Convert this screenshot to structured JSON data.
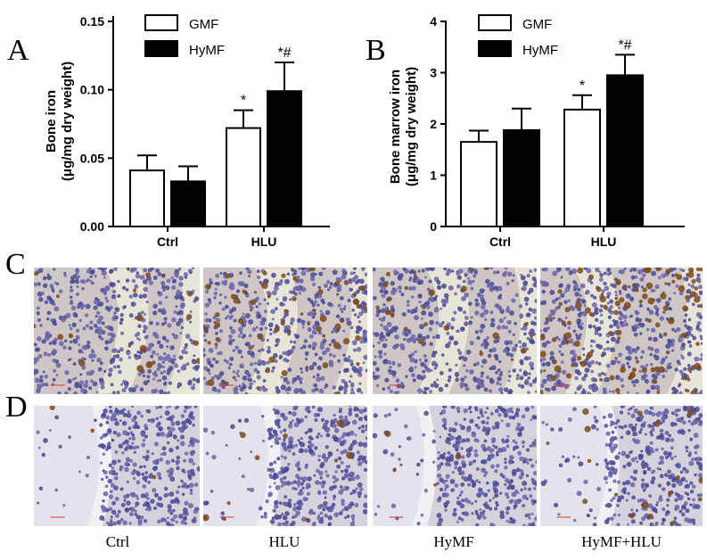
{
  "panels": {
    "a": "A",
    "b": "B",
    "c": "C",
    "d": "D"
  },
  "micrograph_labels": [
    "Ctrl",
    "HLU",
    "HyMF",
    "HyMF+HLU"
  ],
  "colors": {
    "gmf": "#ffffff",
    "hymf": "#000000",
    "stain_cells": "#4a4a94",
    "stain_iron": "#7a4a1a",
    "bone": "#e9e4d8"
  },
  "chart_data": [
    {
      "type": "bar",
      "panel": "A",
      "categories": [
        "Ctrl",
        "HLU"
      ],
      "ylabel_lines": [
        "Bone iron",
        "(μg/mg dry weight)"
      ],
      "ylim": [
        0,
        0.15
      ],
      "yticks": [
        "0.00",
        "0.05",
        "0.10",
        "0.15"
      ],
      "tick_values": [
        0,
        0.05,
        0.1,
        0.15
      ],
      "legend": "top-left",
      "series": [
        {
          "name": "GMF",
          "values": [
            0.041,
            0.072
          ],
          "errors": [
            0.011,
            0.013
          ],
          "annotations": [
            "",
            "*"
          ]
        },
        {
          "name": "HyMF",
          "values": [
            0.033,
            0.099
          ],
          "errors": [
            0.011,
            0.021
          ],
          "annotations": [
            "",
            "*#"
          ]
        }
      ]
    },
    {
      "type": "bar",
      "panel": "B",
      "categories": [
        "Ctrl",
        "HLU"
      ],
      "ylabel_lines": [
        "Bone marrow iron",
        "(μg/mg dry weight)"
      ],
      "ylim": [
        0,
        4
      ],
      "yticks": [
        "0",
        "1",
        "2",
        "3",
        "4"
      ],
      "tick_values": [
        0,
        1,
        2,
        3,
        4
      ],
      "legend": "top-left",
      "series": [
        {
          "name": "GMF",
          "values": [
            1.65,
            2.28
          ],
          "errors": [
            0.22,
            0.28
          ],
          "annotations": [
            "",
            "*"
          ]
        },
        {
          "name": "HyMF",
          "values": [
            1.88,
            2.95
          ],
          "errors": [
            0.42,
            0.4
          ],
          "annotations": [
            "",
            "*#"
          ]
        }
      ]
    }
  ]
}
